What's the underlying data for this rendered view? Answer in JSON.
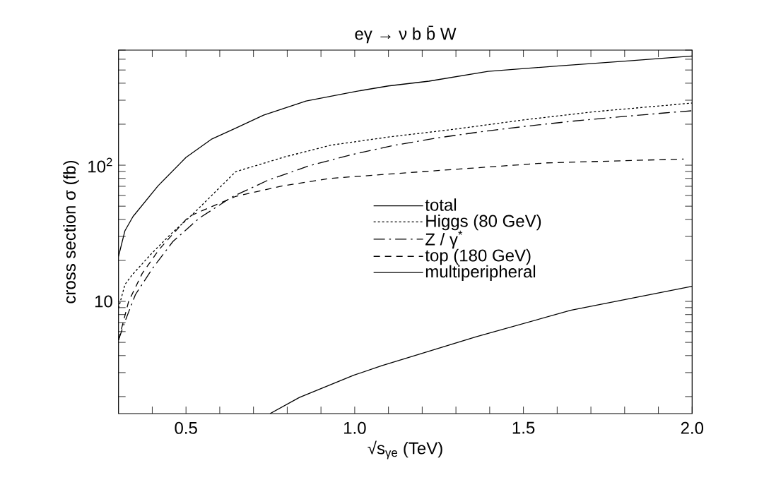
{
  "chart_data": {
    "type": "line",
    "title": "eγ → ν b b̄ W",
    "xlabel": "√s$_{γe}$ (TeV)",
    "ylabel": "cross section σ (fb)",
    "xlim": [
      0.3,
      2.0
    ],
    "ylim": [
      1.5,
      700
    ],
    "log": "y",
    "legend": "center",
    "grid": false,
    "xticks": [
      {
        "value": 0.4,
        "label": null
      },
      0.5,
      {
        "value": 0.6,
        "label": null
      },
      {
        "value": 0.7,
        "label": null
      },
      {
        "value": 0.8,
        "label": null
      },
      {
        "value": 0.9,
        "label": null
      },
      {
        "value": 1.0,
        "label": "1.0"
      },
      {
        "value": 1.1,
        "label": null
      },
      {
        "value": 1.2,
        "label": null
      },
      {
        "value": 1.3,
        "label": null
      },
      {
        "value": 1.4,
        "label": null
      },
      1.5,
      {
        "value": 1.6,
        "label": null
      },
      {
        "value": 1.7,
        "label": null
      },
      {
        "value": 1.8,
        "label": null
      },
      {
        "value": 1.9,
        "label": null
      },
      {
        "value": 2.0,
        "label": "2.0"
      }
    ],
    "yticks": [
      {
        "value": 2,
        "label": null
      },
      {
        "value": 3,
        "label": null
      },
      {
        "value": 4,
        "label": null
      },
      {
        "value": 5,
        "label": null
      },
      {
        "value": 6,
        "label": null
      },
      {
        "value": 7,
        "label": null
      },
      {
        "value": 8,
        "label": null
      },
      {
        "value": 9,
        "label": null
      },
      10,
      {
        "value": 20,
        "label": null
      },
      {
        "value": 30,
        "label": null
      },
      {
        "value": 40,
        "label": null
      },
      {
        "value": 50,
        "label": null
      },
      {
        "value": 60,
        "label": null
      },
      {
        "value": 70,
        "label": null
      },
      {
        "value": 80,
        "label": null
      },
      {
        "value": 90,
        "label": null
      },
      {
        "value": 100,
        "label": "10$^{2}$"
      },
      {
        "value": 200,
        "label": null
      },
      {
        "value": 300,
        "label": null
      },
      {
        "value": 400,
        "label": null
      },
      {
        "value": 500,
        "label": null
      },
      {
        "value": 600,
        "label": null
      },
      {
        "value": 700,
        "label": null
      }
    ],
    "series": [
      {
        "name": "total",
        "color": "#000000",
        "line_style": "solid",
        "x": [
          0.3,
          0.319,
          0.343,
          0.417,
          0.5,
          0.577,
          0.647,
          0.73,
          0.856,
          0.997,
          1.1,
          1.22,
          1.395,
          1.605,
          1.815,
          2.0
        ],
        "values": [
          21.4,
          33,
          42,
          70.5,
          114,
          156,
          187,
          233,
          296,
          346,
          382,
          414,
          489,
          536,
          585,
          634
        ]
      },
      {
        "name": "Higgs (80 GeV)",
        "color": "#000000",
        "line_style": "dotted",
        "x": [
          0.3,
          0.319,
          0.34,
          0.396,
          0.452,
          0.521,
          0.647,
          0.787,
          0.927,
          1.1,
          1.29,
          1.5,
          1.71,
          2.0
        ],
        "values": [
          8.9,
          13.3,
          15.6,
          22.2,
          30.7,
          43.9,
          89.5,
          114,
          140,
          161,
          183,
          215,
          247,
          286
        ]
      },
      {
        "name": "Z / γ$^{*}$",
        "color": "#000000",
        "line_style": "dashdot",
        "x": [
          0.3,
          0.317,
          0.35,
          0.401,
          0.461,
          0.539,
          0.635,
          0.744,
          0.864,
          0.988,
          1.117,
          1.248,
          1.381,
          1.514,
          1.65,
          1.783,
          1.919,
          2.0
        ],
        "values": [
          5.2,
          6.9,
          11.2,
          17.5,
          27.5,
          40.8,
          58.2,
          77.8,
          98.8,
          119,
          140,
          159,
          177,
          194,
          211,
          226,
          242,
          251
        ]
      },
      {
        "name": "top (180 GeV)",
        "color": "#000000",
        "line_style": "dashed",
        "x": [
          0.3,
          0.33,
          0.37,
          0.42,
          0.46,
          0.508,
          0.647,
          0.787,
          0.927,
          1.1,
          1.29,
          1.57,
          1.975
        ],
        "values": [
          5.2,
          10,
          16,
          24,
          31,
          42,
          59,
          70.5,
          80,
          86,
          93,
          104,
          111
        ]
      },
      {
        "name": "multiperipheral",
        "color": "#000000",
        "line_style": "solid",
        "x": [
          0.749,
          0.836,
          0.997,
          1.08,
          1.36,
          1.64,
          2.0
        ],
        "values": [
          1.5,
          1.97,
          2.87,
          3.37,
          5.5,
          8.6,
          12.9
        ]
      }
    ]
  }
}
